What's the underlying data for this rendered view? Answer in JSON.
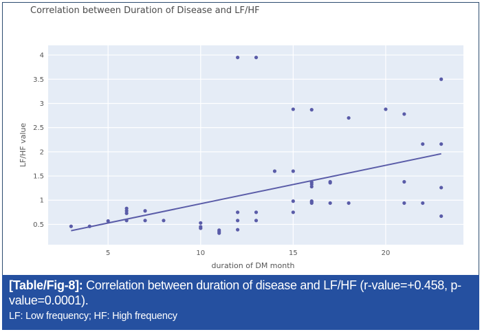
{
  "chart_data": {
    "type": "scatter",
    "title": "Correlation between Duration of Disease and LF/HF",
    "xlabel": "duration of DM month",
    "ylabel": "LF/HF value",
    "xlim": [
      1.76,
      24.2
    ],
    "ylim": [
      0.08,
      4.2
    ],
    "x_ticks": [
      5,
      10,
      15,
      20
    ],
    "y_ticks": [
      0.5,
      1,
      1.5,
      2,
      2.5,
      3,
      3.5,
      4
    ],
    "x_tick_labels": [
      "5",
      "10",
      "15",
      "20"
    ],
    "y_tick_labels": [
      "0.5",
      "1",
      "1.5",
      "2",
      "2.5",
      "3",
      "3.5",
      "4"
    ],
    "grid": true,
    "marker_color": "#5a5ca8",
    "plot_bg": "#e5ecf6",
    "points": [
      {
        "x": 3,
        "y": 0.46
      },
      {
        "x": 4,
        "y": 0.46
      },
      {
        "x": 5,
        "y": 0.57
      },
      {
        "x": 6,
        "y": 0.83
      },
      {
        "x": 6,
        "y": 0.78
      },
      {
        "x": 6,
        "y": 0.73
      },
      {
        "x": 6,
        "y": 0.58
      },
      {
        "x": 7,
        "y": 0.78
      },
      {
        "x": 7,
        "y": 0.58
      },
      {
        "x": 8,
        "y": 0.58
      },
      {
        "x": 10,
        "y": 0.53
      },
      {
        "x": 10,
        "y": 0.45
      },
      {
        "x": 10,
        "y": 0.42
      },
      {
        "x": 11,
        "y": 0.38
      },
      {
        "x": 11,
        "y": 0.35
      },
      {
        "x": 11,
        "y": 0.32
      },
      {
        "x": 12,
        "y": 3.95
      },
      {
        "x": 12,
        "y": 0.75
      },
      {
        "x": 12,
        "y": 0.58
      },
      {
        "x": 12,
        "y": 0.39
      },
      {
        "x": 13,
        "y": 3.95
      },
      {
        "x": 13,
        "y": 0.75
      },
      {
        "x": 13,
        "y": 0.58
      },
      {
        "x": 14,
        "y": 1.6
      },
      {
        "x": 15,
        "y": 2.88
      },
      {
        "x": 15,
        "y": 1.6
      },
      {
        "x": 15,
        "y": 0.98
      },
      {
        "x": 15,
        "y": 0.75
      },
      {
        "x": 16,
        "y": 2.87
      },
      {
        "x": 16,
        "y": 1.37
      },
      {
        "x": 16,
        "y": 1.33
      },
      {
        "x": 16,
        "y": 1.28
      },
      {
        "x": 16,
        "y": 0.98
      },
      {
        "x": 16,
        "y": 0.96
      },
      {
        "x": 16,
        "y": 0.94
      },
      {
        "x": 17,
        "y": 1.38
      },
      {
        "x": 17,
        "y": 1.36
      },
      {
        "x": 17,
        "y": 0.94
      },
      {
        "x": 18,
        "y": 2.7
      },
      {
        "x": 18,
        "y": 0.94
      },
      {
        "x": 20,
        "y": 2.88
      },
      {
        "x": 21,
        "y": 2.78
      },
      {
        "x": 21,
        "y": 1.38
      },
      {
        "x": 21,
        "y": 0.94
      },
      {
        "x": 22,
        "y": 2.16
      },
      {
        "x": 22,
        "y": 0.94
      },
      {
        "x": 23,
        "y": 3.5
      },
      {
        "x": 23,
        "y": 2.16
      },
      {
        "x": 23,
        "y": 1.26
      },
      {
        "x": 23,
        "y": 0.67
      }
    ],
    "trendline": {
      "x": [
        3,
        23
      ],
      "y": [
        0.37,
        1.96
      ]
    }
  },
  "caption": {
    "tag": "[Table/Fig-8]:",
    "text": " Correlation between duration of disease and LF/HF (r-value=+0.458, p-value=0.0001).",
    "note": "LF: Low frequency; HF: High frequency"
  }
}
